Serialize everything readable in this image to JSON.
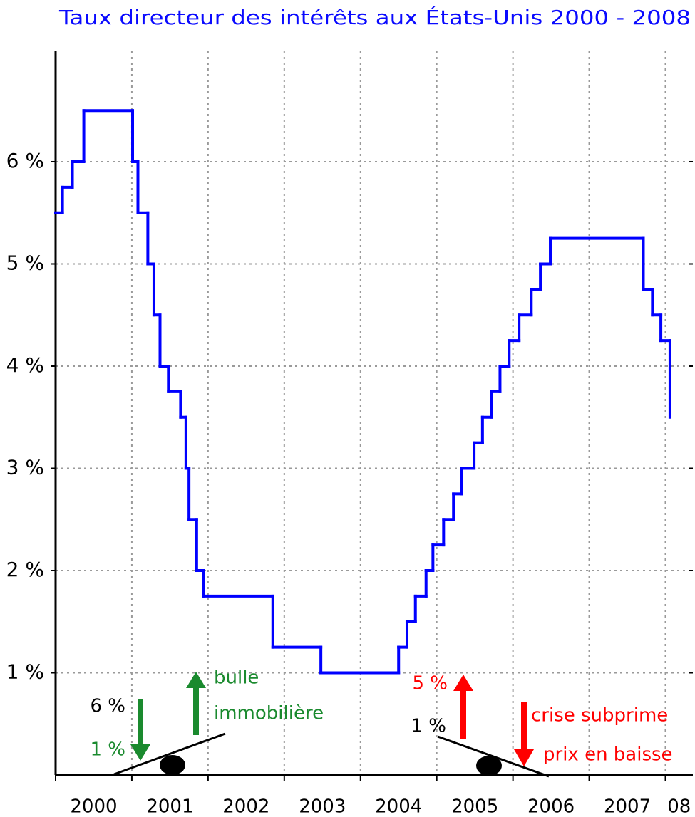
{
  "chart_data": {
    "type": "line",
    "step": "post",
    "title": "Taux directeur des intérêts aux États-Unis 2000 - 2008",
    "title_color": "#0a0aff",
    "x": [
      2000.0,
      2000.09,
      2000.22,
      2000.37,
      2001.01,
      2001.08,
      2001.21,
      2001.29,
      2001.37,
      2001.48,
      2001.64,
      2001.71,
      2001.75,
      2001.85,
      2001.94,
      2002.85,
      2003.48,
      2004.5,
      2004.61,
      2004.72,
      2004.86,
      2004.95,
      2005.09,
      2005.22,
      2005.33,
      2005.49,
      2005.6,
      2005.72,
      2005.83,
      2005.95,
      2006.08,
      2006.24,
      2006.36,
      2006.49,
      2007.71,
      2007.83,
      2007.94,
      2008.06
    ],
    "values": [
      5.5,
      5.75,
      6.0,
      6.5,
      6.0,
      5.5,
      5.0,
      4.5,
      4.0,
      3.75,
      3.5,
      3.0,
      2.5,
      2.0,
      1.75,
      1.25,
      1.0,
      1.25,
      1.5,
      1.75,
      2.0,
      2.25,
      2.5,
      2.75,
      3.0,
      3.25,
      3.5,
      3.75,
      4.0,
      4.25,
      4.5,
      4.75,
      5.0,
      5.25,
      4.75,
      4.5,
      4.25,
      3.5
    ],
    "color": "#0000ff",
    "xlim": [
      2000,
      2008.36
    ],
    "xticks": [
      2000,
      2001,
      2002,
      2003,
      2004,
      2005,
      2006,
      2007,
      {
        "value": 2008,
        "label": "08"
      }
    ],
    "ylim": [
      0,
      7.08
    ],
    "yticks": [
      {
        "value": 1,
        "label": "1 %"
      },
      {
        "value": 2,
        "label": "2 %"
      },
      {
        "value": 3,
        "label": "3 %"
      },
      {
        "value": 4,
        "label": "4 %"
      },
      {
        "value": 5,
        "label": "5 %"
      },
      {
        "value": 6,
        "label": "6 %"
      }
    ],
    "grid": true,
    "annotations": [
      {
        "text": "6 %",
        "color": "#000000"
      },
      {
        "text": "1 %",
        "color": "#1a8a2e"
      },
      {
        "text": "bulle",
        "color": "#1a8a2e"
      },
      {
        "text": "immobilière",
        "color": "#1a8a2e"
      },
      {
        "text": "5 %",
        "color": "#ff0000"
      },
      {
        "text": "1 %",
        "color": "#000000"
      },
      {
        "text": "crise subprime",
        "color": "#ff0000"
      },
      {
        "text": "prix en baisse",
        "color": "#ff0000"
      }
    ]
  }
}
